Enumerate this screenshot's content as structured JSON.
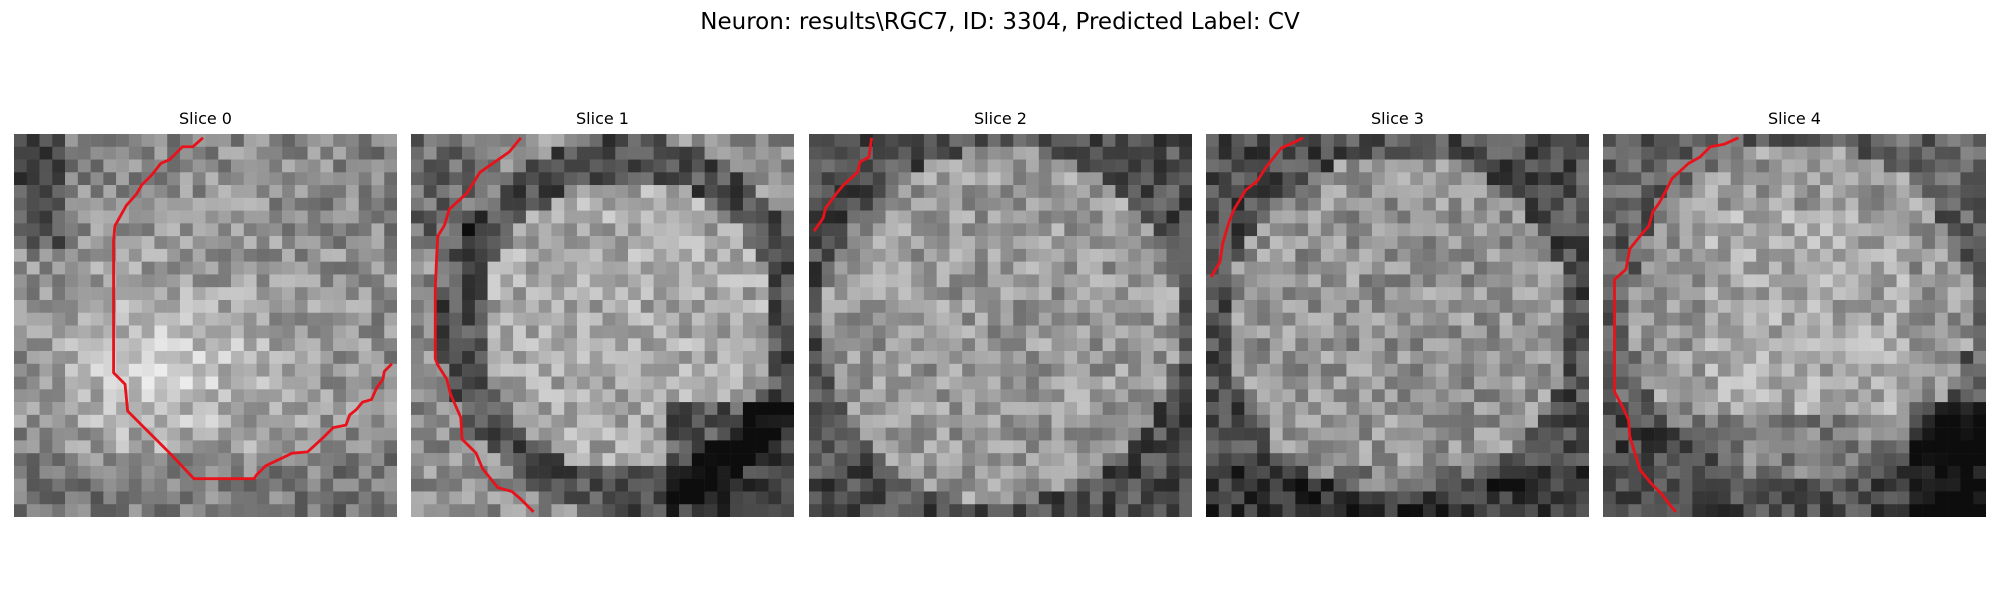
{
  "figure": {
    "title": "Neuron: results\\RGC7, ID: 3304, Predicted Label: CV"
  },
  "colors": {
    "contour": "#e8121b",
    "background": "#ffffff",
    "pixel_dark": "#111111",
    "pixel_light": "#f4f4f4"
  },
  "panels": [
    {
      "title": "Slice 0",
      "image": "grayscale-microscopy-slice",
      "overlay": "red-contour"
    },
    {
      "title": "Slice 1",
      "image": "grayscale-microscopy-slice",
      "overlay": "red-contour"
    },
    {
      "title": "Slice 2",
      "image": "grayscale-microscopy-slice",
      "overlay": "red-contour"
    },
    {
      "title": "Slice 3",
      "image": "grayscale-microscopy-slice",
      "overlay": "red-contour"
    },
    {
      "title": "Slice 4",
      "image": "grayscale-microscopy-slice",
      "overlay": "red-contour"
    }
  ]
}
